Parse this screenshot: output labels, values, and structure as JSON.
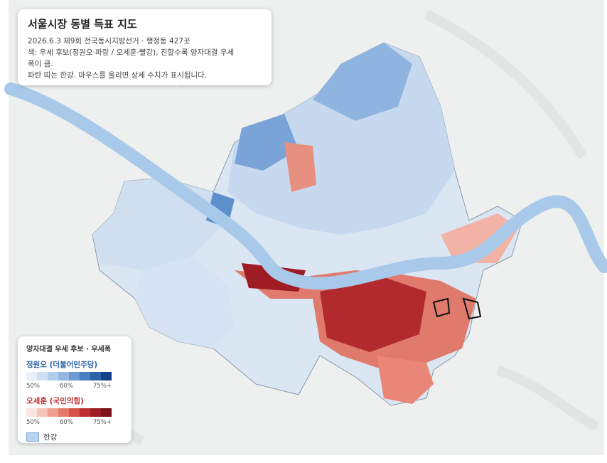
{
  "header": {
    "title": "서울시장 동별 득표 지도",
    "lines": [
      "2026.6.3 제9회 전국동시지방선거 · 행정동 427곳",
      "색: 우세 후보(정원오·파랑 / 오세훈·빨강), 진할수록 양자대결 우세",
      "폭이 큼.",
      "파란 띠는 한강. 마우스를 올리면 상세 수치가 표시됩니다."
    ]
  },
  "legend": {
    "title": "양자대결 우세 후보 · 우세폭",
    "candidates": [
      {
        "name": "정원오 (더불어민주당)",
        "color": "#2b62a8",
        "ramp": [
          "#e8f0fa",
          "#cfe0f3",
          "#b3cdec",
          "#94b8e2",
          "#6f9cd4",
          "#4a7fc2",
          "#2b62a8",
          "#14428a"
        ],
        "ticks": [
          "50%",
          "60%",
          "75%+"
        ]
      },
      {
        "name": "오세훈 (국민의힘)",
        "color": "#bf2f2f",
        "ramp": [
          "#fbe5e1",
          "#f6c4bb",
          "#efa091",
          "#e67a6a",
          "#d65146",
          "#bf2f2f",
          "#9e1c24",
          "#7a1119"
        ],
        "ticks": [
          "50%",
          "60%",
          "75%+"
        ]
      }
    ],
    "river": {
      "label": "한강",
      "color": "#b6d4ef"
    }
  }
}
